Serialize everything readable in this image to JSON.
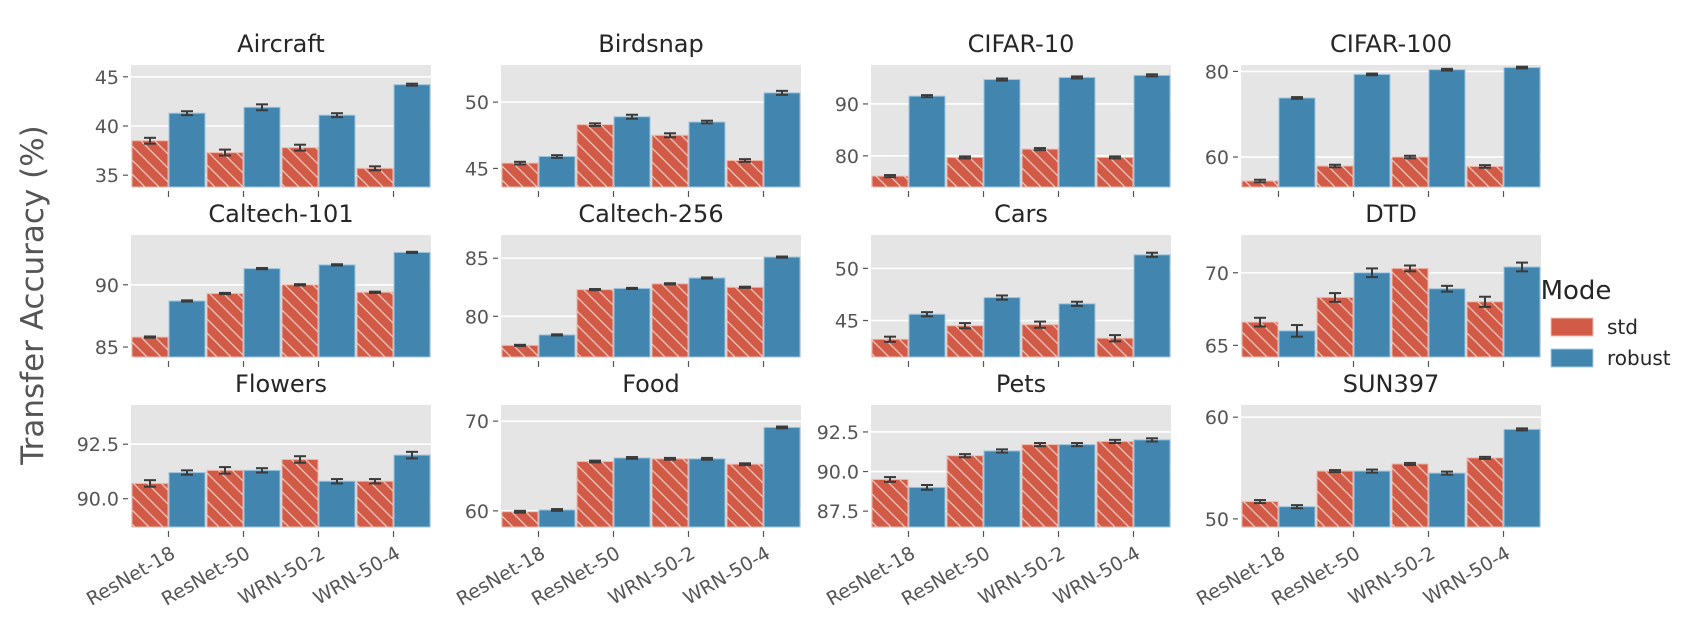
{
  "chart_data": {
    "type": "bar",
    "ylabel": "Transfer Accuracy (%)",
    "categories": [
      "ResNet-18",
      "ResNet-50",
      "WRN-50-2",
      "WRN-50-4"
    ],
    "legend": {
      "title": "Mode",
      "position": "right",
      "entries": [
        {
          "name": "std",
          "color": "#d15b47",
          "hatch": true
        },
        {
          "name": "robust",
          "color": "#4286b0",
          "hatch": false
        }
      ]
    },
    "grid": true,
    "background": "#e5e5e5",
    "panels": [
      {
        "title": "Aircraft",
        "ylim": [
          33.8,
          46.2
        ],
        "yticks": [
          35,
          40,
          45
        ],
        "ytick_labels": [
          "35",
          "40",
          "45"
        ],
        "series": [
          {
            "name": "std",
            "values": [
              38.5,
              37.3,
              37.8,
              35.7
            ],
            "err": [
              0.3,
              0.3,
              0.3,
              0.2
            ]
          },
          {
            "name": "robust",
            "values": [
              41.3,
              41.9,
              41.1,
              44.2
            ],
            "err": [
              0.2,
              0.3,
              0.2,
              0.1
            ]
          }
        ]
      },
      {
        "title": "Birdsnap",
        "ylim": [
          43.6,
          52.8
        ],
        "yticks": [
          45,
          50
        ],
        "ytick_labels": [
          "45",
          "50"
        ],
        "series": [
          {
            "name": "std",
            "values": [
              45.4,
              48.3,
              47.5,
              45.6
            ],
            "err": [
              0.1,
              0.1,
              0.15,
              0.1
            ]
          },
          {
            "name": "robust",
            "values": [
              45.9,
              48.9,
              48.5,
              50.7
            ],
            "err": [
              0.1,
              0.15,
              0.1,
              0.15
            ]
          }
        ]
      },
      {
        "title": "CIFAR-10",
        "ylim": [
          74,
          97.5
        ],
        "yticks": [
          80,
          90
        ],
        "ytick_labels": [
          "80",
          "90"
        ],
        "series": [
          {
            "name": "std",
            "values": [
              76.1,
              79.7,
              81.3,
              79.7
            ],
            "err": [
              0.2,
              0.2,
              0.2,
              0.2
            ]
          },
          {
            "name": "robust",
            "values": [
              91.5,
              94.7,
              95.1,
              95.5
            ],
            "err": [
              0.2,
              0.2,
              0.2,
              0.2
            ]
          }
        ]
      },
      {
        "title": "CIFAR-100",
        "ylim": [
          53,
          81.5
        ],
        "yticks": [
          60,
          80
        ],
        "ytick_labels": [
          "60",
          "80"
        ],
        "series": [
          {
            "name": "std",
            "values": [
              54.4,
              57.9,
              60.0,
              57.8
            ],
            "err": [
              0.3,
              0.3,
              0.3,
              0.3
            ]
          },
          {
            "name": "robust",
            "values": [
              73.8,
              79.3,
              80.4,
              80.9
            ],
            "err": [
              0.2,
              0.2,
              0.2,
              0.2
            ]
          }
        ]
      },
      {
        "title": "Caltech-101",
        "ylim": [
          84.2,
          94
        ],
        "yticks": [
          85,
          90
        ],
        "ytick_labels": [
          "85",
          "90"
        ],
        "series": [
          {
            "name": "std",
            "values": [
              85.8,
              89.3,
              90.0,
              89.4
            ],
            "err": [
              0.05,
              0.05,
              0.05,
              0.05
            ]
          },
          {
            "name": "robust",
            "values": [
              88.7,
              91.3,
              91.6,
              92.6
            ],
            "err": [
              0.05,
              0.05,
              0.05,
              0.05
            ]
          }
        ]
      },
      {
        "title": "Caltech-256",
        "ylim": [
          76.5,
          87
        ],
        "yticks": [
          80,
          85
        ],
        "ytick_labels": [
          "80",
          "85"
        ],
        "series": [
          {
            "name": "std",
            "values": [
              77.5,
              82.3,
              82.8,
              82.5
            ],
            "err": [
              0.05,
              0.05,
              0.05,
              0.05
            ]
          },
          {
            "name": "robust",
            "values": [
              78.4,
              82.4,
              83.3,
              85.1
            ],
            "err": [
              0.05,
              0.05,
              0.05,
              0.05
            ]
          }
        ]
      },
      {
        "title": "Cars",
        "ylim": [
          41.5,
          53.2
        ],
        "yticks": [
          45,
          50
        ],
        "ytick_labels": [
          "45",
          "50"
        ],
        "series": [
          {
            "name": "std",
            "values": [
              43.2,
              44.5,
              44.6,
              43.3
            ],
            "err": [
              0.25,
              0.25,
              0.3,
              0.3
            ]
          },
          {
            "name": "robust",
            "values": [
              45.6,
              47.2,
              46.6,
              51.3
            ],
            "err": [
              0.2,
              0.2,
              0.2,
              0.2
            ]
          }
        ]
      },
      {
        "title": "DTD",
        "ylim": [
          64.2,
          72.6
        ],
        "yticks": [
          65,
          70
        ],
        "ytick_labels": [
          "65",
          "70"
        ],
        "series": [
          {
            "name": "std",
            "values": [
              66.6,
              68.3,
              70.3,
              68.0
            ],
            "err": [
              0.3,
              0.3,
              0.2,
              0.35
            ]
          },
          {
            "name": "robust",
            "values": [
              66.0,
              70.0,
              68.9,
              70.4
            ],
            "err": [
              0.4,
              0.3,
              0.2,
              0.3
            ]
          }
        ]
      },
      {
        "title": "Flowers",
        "ylim": [
          88.7,
          94.3
        ],
        "yticks": [
          90.0,
          92.5
        ],
        "ytick_labels": [
          "90.0",
          "92.5"
        ],
        "series": [
          {
            "name": "std",
            "values": [
              90.7,
              91.3,
              91.8,
              90.8
            ],
            "err": [
              0.15,
              0.15,
              0.15,
              0.1
            ]
          },
          {
            "name": "robust",
            "values": [
              91.2,
              91.3,
              90.8,
              92.0
            ],
            "err": [
              0.1,
              0.1,
              0.1,
              0.15
            ]
          }
        ]
      },
      {
        "title": "Food",
        "ylim": [
          58.2,
          71.8
        ],
        "yticks": [
          60,
          70
        ],
        "ytick_labels": [
          "60",
          "70"
        ],
        "series": [
          {
            "name": "std",
            "values": [
              59.9,
              65.5,
              65.8,
              65.2
            ],
            "err": [
              0.1,
              0.1,
              0.1,
              0.1
            ]
          },
          {
            "name": "robust",
            "values": [
              60.1,
              65.9,
              65.8,
              69.3
            ],
            "err": [
              0.1,
              0.1,
              0.1,
              0.1
            ]
          }
        ]
      },
      {
        "title": "Pets",
        "ylim": [
          86.5,
          94.2
        ],
        "yticks": [
          87.5,
          90.0,
          92.5
        ],
        "ytick_labels": [
          "87.5",
          "90.0",
          "92.5"
        ],
        "series": [
          {
            "name": "std",
            "values": [
              89.5,
              91.0,
              91.7,
              91.9
            ],
            "err": [
              0.15,
              0.1,
              0.1,
              0.1
            ]
          },
          {
            "name": "robust",
            "values": [
              89.0,
              91.3,
              91.7,
              92.0
            ],
            "err": [
              0.15,
              0.1,
              0.1,
              0.1
            ]
          }
        ]
      },
      {
        "title": "SUN397",
        "ylim": [
          49.2,
          61.2
        ],
        "yticks": [
          50,
          60
        ],
        "ytick_labels": [
          "50",
          "60"
        ],
        "series": [
          {
            "name": "std",
            "values": [
              51.7,
              54.7,
              55.4,
              56.0
            ],
            "err": [
              0.15,
              0.1,
              0.1,
              0.1
            ]
          },
          {
            "name": "robust",
            "values": [
              51.2,
              54.7,
              54.5,
              58.8
            ],
            "err": [
              0.15,
              0.15,
              0.15,
              0.1
            ]
          }
        ]
      }
    ]
  }
}
